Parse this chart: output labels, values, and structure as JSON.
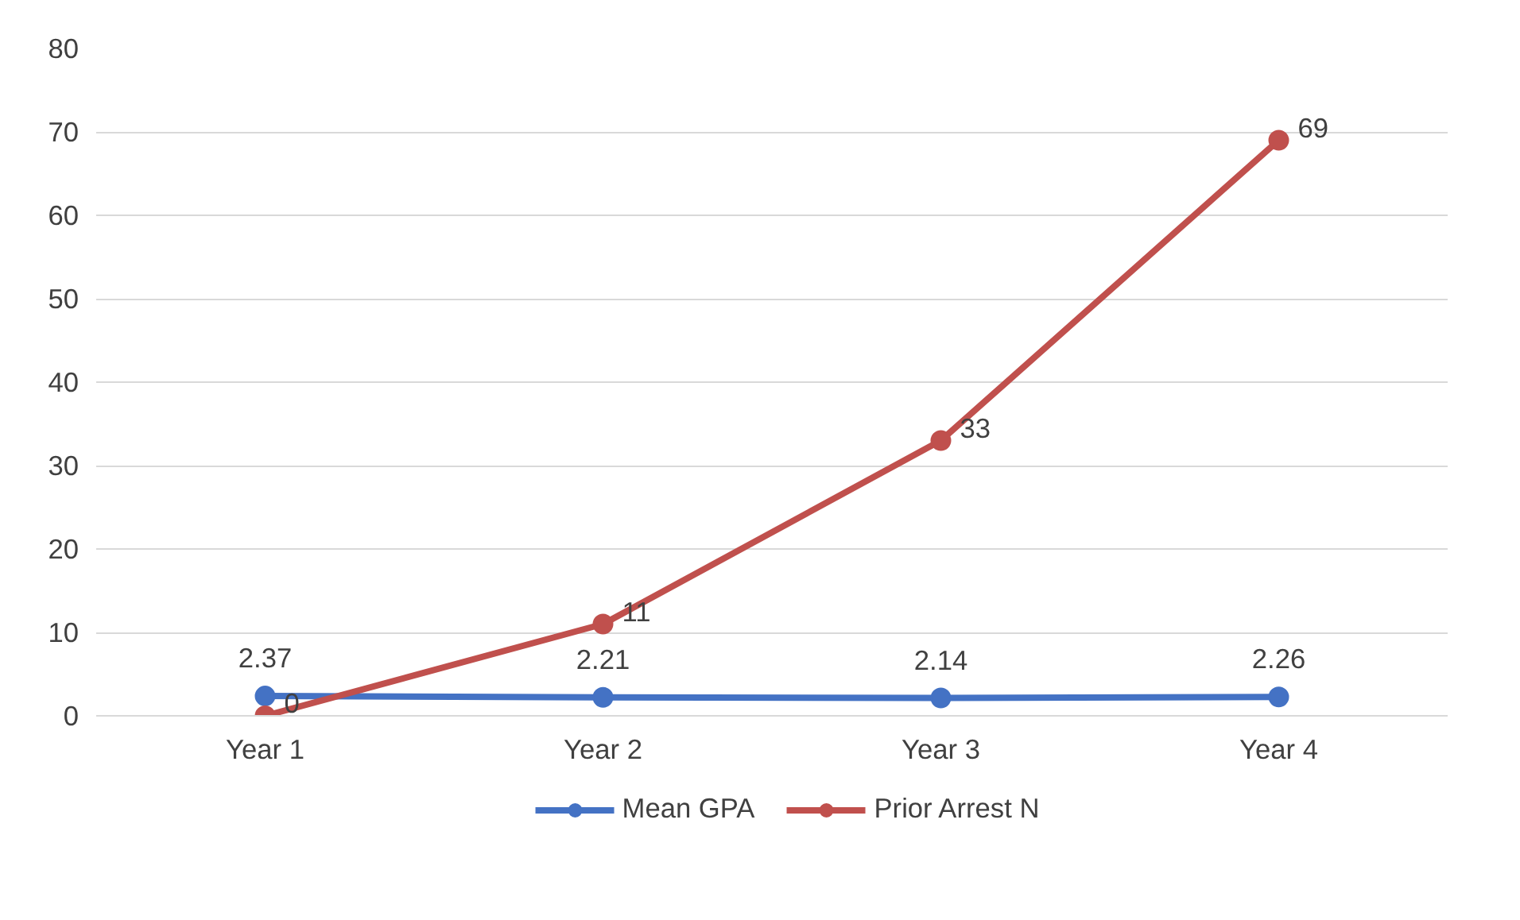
{
  "chart_data": {
    "type": "line",
    "categories": [
      "Year 1",
      "Year 2",
      "Year 3",
      "Year 4"
    ],
    "series": [
      {
        "name": "Mean GPA",
        "color": "#4472c4",
        "values": [
          2.37,
          2.21,
          2.14,
          2.26
        ]
      },
      {
        "name": "Prior Arrest N",
        "color": "#c0504d",
        "values": [
          0,
          11,
          33,
          69
        ]
      }
    ],
    "ylim": [
      0,
      80
    ],
    "yticks": [
      0,
      10,
      20,
      30,
      40,
      50,
      60,
      70,
      80
    ],
    "grid": "y",
    "legend": "bottom",
    "marker": "circle",
    "line_style": "solid",
    "data_labels": true
  }
}
